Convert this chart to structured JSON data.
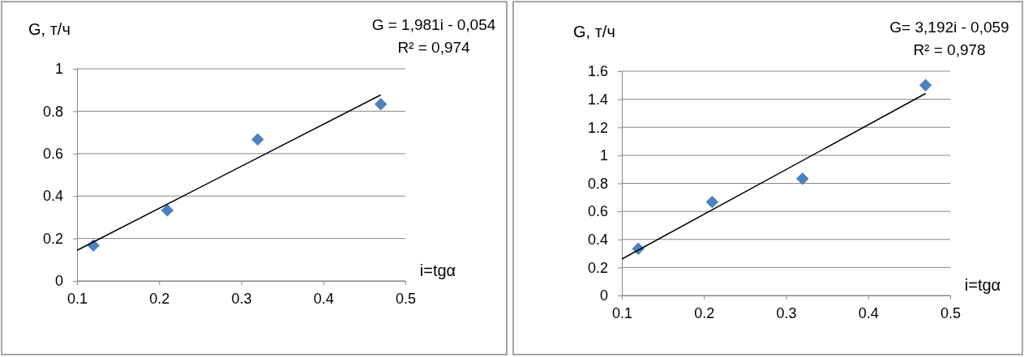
{
  "chart_data": [
    {
      "type": "scatter",
      "ylabel": "G, т/ч",
      "xlabel": "i=tgα",
      "annotations": [
        "G = 1,981i - 0,054",
        "R² = 0,974"
      ],
      "xlim": [
        0.1,
        0.5
      ],
      "xticks": [
        0.1,
        0.2,
        0.3,
        0.4,
        0.5
      ],
      "ylim": [
        0,
        1
      ],
      "yticks": [
        0,
        0.2,
        0.4,
        0.6,
        0.8,
        1
      ],
      "grid": "y",
      "series": [
        {
          "color": "#4f81bd",
          "marker": "diamond",
          "x": [
            0.12,
            0.21,
            0.32,
            0.47
          ],
          "values": [
            0.167,
            0.333,
            0.667,
            0.833
          ]
        },
        {
          "type": "line",
          "color": "#000000",
          "marker": "none",
          "x": [
            0.1,
            0.47
          ],
          "values": [
            0.144,
            0.877
          ]
        }
      ]
    },
    {
      "type": "scatter",
      "ylabel": "G, т/ч",
      "xlabel": "i=tgα",
      "annotations": [
        "G= 3,192i - 0,059",
        "R² = 0,978"
      ],
      "xlim": [
        0.1,
        0.5
      ],
      "xticks": [
        0.1,
        0.2,
        0.3,
        0.4,
        0.5
      ],
      "ylim": [
        0,
        1.6
      ],
      "yticks": [
        0,
        0.2,
        0.4,
        0.6,
        0.8,
        1,
        1.2,
        1.4,
        1.6
      ],
      "grid": "y",
      "series": [
        {
          "color": "#4f81bd",
          "marker": "diamond",
          "x": [
            0.12,
            0.21,
            0.32,
            0.47
          ],
          "values": [
            0.333,
            0.667,
            0.833,
            1.5
          ]
        },
        {
          "type": "line",
          "color": "#000000",
          "marker": "none",
          "x": [
            0.1,
            0.47
          ],
          "values": [
            0.26,
            1.441
          ]
        }
      ]
    }
  ]
}
